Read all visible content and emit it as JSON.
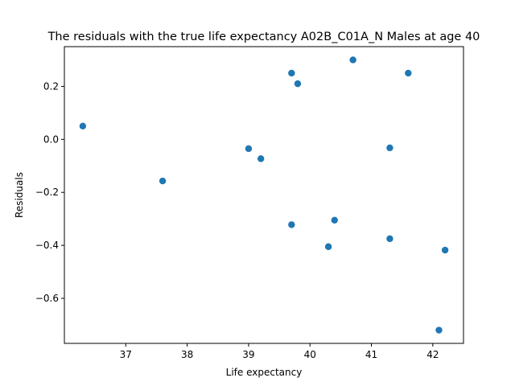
{
  "chart_data": {
    "type": "scatter",
    "title": "The residuals with the true life expectancy A02B_C01A_N Males at age 40",
    "xlabel": "Life expectancy",
    "ylabel": "Residuals",
    "xlim": [
      36.0,
      42.5
    ],
    "ylim": [
      -0.77,
      0.35
    ],
    "xticks": [
      37,
      38,
      39,
      40,
      41,
      42
    ],
    "xtick_labels": [
      "37",
      "38",
      "39",
      "40",
      "41",
      "42"
    ],
    "yticks": [
      -0.6,
      -0.4,
      -0.2,
      0.0,
      0.2
    ],
    "ytick_labels": [
      "−0.6",
      "−0.4",
      "−0.2",
      "0.0",
      "0.2"
    ],
    "grid": false,
    "marker_color": "#1f77b4",
    "points": [
      {
        "x": 36.3,
        "y": 0.05
      },
      {
        "x": 37.6,
        "y": -0.157
      },
      {
        "x": 39.0,
        "y": -0.035
      },
      {
        "x": 39.2,
        "y": -0.073
      },
      {
        "x": 39.7,
        "y": 0.25
      },
      {
        "x": 39.7,
        "y": -0.322
      },
      {
        "x": 39.8,
        "y": 0.21
      },
      {
        "x": 40.3,
        "y": -0.405
      },
      {
        "x": 40.4,
        "y": -0.305
      },
      {
        "x": 40.7,
        "y": 0.3
      },
      {
        "x": 41.3,
        "y": -0.032
      },
      {
        "x": 41.3,
        "y": -0.375
      },
      {
        "x": 41.6,
        "y": 0.25
      },
      {
        "x": 42.1,
        "y": -0.72
      },
      {
        "x": 42.2,
        "y": -0.418
      }
    ]
  }
}
